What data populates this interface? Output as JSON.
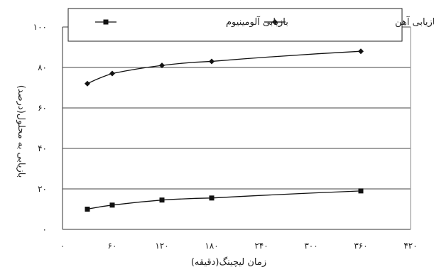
{
  "chart_data": {
    "type": "line",
    "xlabel": "زمان لیچینگ(دقیقه)",
    "ylabel": "بازیابی به محلول(درصد)",
    "x_ticks": [
      "۰",
      "۶۰",
      "۱۲۰",
      "۱۸۰",
      "۲۴۰",
      "۳۰۰",
      "۳۶۰",
      "۴۲۰"
    ],
    "y_ticks": [
      "۰",
      "۲۰",
      "۴۰",
      "۶۰",
      "۸۰",
      "۱۰۰"
    ],
    "xlim": [
      0,
      420
    ],
    "ylim": [
      0,
      100
    ],
    "grid": "horizontal",
    "legend_position": "top",
    "series": [
      {
        "name": "بازیابی آهن",
        "marker": "diamond",
        "color": "#111111",
        "points": [
          [
            30,
            72
          ],
          [
            60,
            77
          ],
          [
            120,
            81
          ],
          [
            180,
            83
          ],
          [
            360,
            88
          ]
        ]
      },
      {
        "name": "بازیابی آلومینیوم",
        "marker": "square",
        "color": "#111111",
        "points": [
          [
            30,
            10
          ],
          [
            60,
            12
          ],
          [
            120,
            14.5
          ],
          [
            180,
            15.5
          ],
          [
            360,
            19
          ]
        ]
      }
    ]
  }
}
